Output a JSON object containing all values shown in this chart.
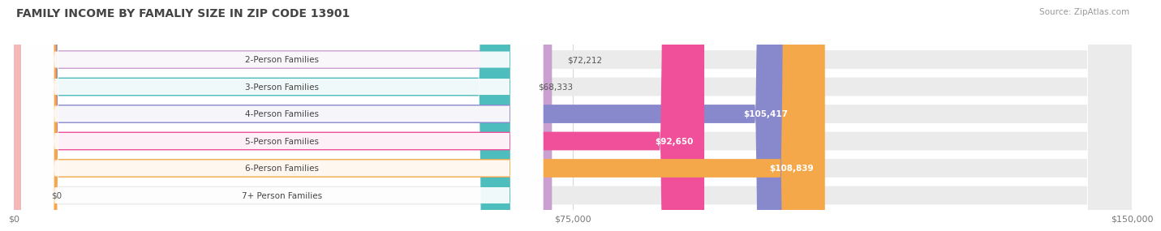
{
  "title": "FAMILY INCOME BY FAMALIY SIZE IN ZIP CODE 13901",
  "source": "Source: ZipAtlas.com",
  "categories": [
    "2-Person Families",
    "3-Person Families",
    "4-Person Families",
    "5-Person Families",
    "6-Person Families",
    "7+ Person Families"
  ],
  "values": [
    72212,
    68333,
    105417,
    92650,
    108839,
    0
  ],
  "labels": [
    "$72,212",
    "$68,333",
    "$105,417",
    "$92,650",
    "$108,839",
    "$0"
  ],
  "bar_colors": [
    "#c9a0d0",
    "#4dbdbd",
    "#8888cc",
    "#f0509a",
    "#f5a84a",
    "#f5b8b8"
  ],
  "bar_bg_color": "#ebebeb",
  "xlim": [
    0,
    150000
  ],
  "xticks": [
    0,
    75000,
    150000
  ],
  "xticklabels": [
    "$0",
    "$75,000",
    "$150,000"
  ],
  "title_fontsize": 10,
  "source_fontsize": 7.5,
  "bar_height": 0.68,
  "background_color": "#ffffff",
  "grid_color": "#d8d8d8",
  "label_color": "#555555",
  "value_inside_color": "#ffffff",
  "value_outside_color": "#555555"
}
